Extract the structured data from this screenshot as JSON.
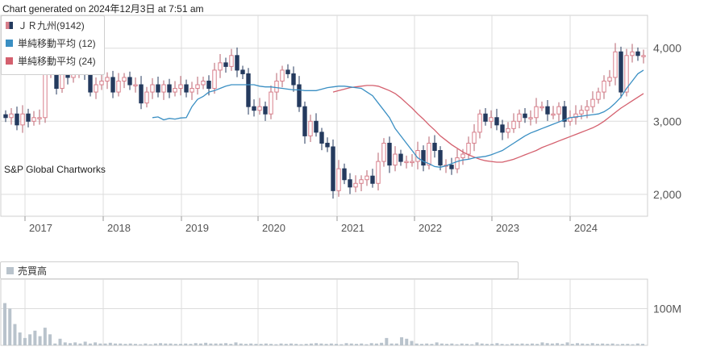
{
  "generated": "Chart generated on 2024年12月3日 at 7:51 am",
  "legend": {
    "price": "ＪＲ九州(9142)",
    "ma12": "単純移動平均 (12)",
    "ma24": "単純移動平均 (24)"
  },
  "source": "S&P Global Chartworks",
  "volume_label": "売買高",
  "colors": {
    "up": "#d97f8b",
    "down": "#243a5e",
    "ma12": "#3a8fc3",
    "ma24": "#d4606e",
    "volume": "#b9c3cc",
    "grid": "#dcdcdc"
  },
  "chart_data": [
    {
      "type": "candlestick",
      "series_name": "ＪＲ九州(9142)",
      "x_ticks": [
        "2017",
        "2018",
        "2019",
        "2020",
        "2021",
        "2022",
        "2023",
        "2024"
      ],
      "y_ticks": [
        "2,000",
        "3,000",
        "4,000"
      ],
      "ylim": [
        1700,
        4450
      ],
      "close": [
        3050,
        3100,
        2950,
        3100,
        3000,
        3050,
        3050,
        3700,
        3700,
        3450,
        3900,
        3600,
        3700,
        3800,
        3650,
        3400,
        3500,
        3550,
        3600,
        3400,
        3550,
        3600,
        3500,
        3500,
        3250,
        3400,
        3500,
        3400,
        3500,
        3400,
        3450,
        3500,
        3400,
        3450,
        3500,
        3550,
        3450,
        3700,
        3800,
        3750,
        3900,
        3700,
        3650,
        3200,
        3150,
        3200,
        3100,
        3400,
        3550,
        3700,
        3650,
        3500,
        3200,
        2800,
        3000,
        2850,
        2700,
        2650,
        2050,
        2350,
        2200,
        2100,
        2150,
        2200,
        2250,
        2150,
        2450,
        2700,
        2400,
        2550,
        2450,
        2450,
        2450,
        2600,
        2400,
        2700,
        2600,
        2400,
        2400,
        2350,
        2500,
        2550,
        2700,
        2850,
        3100,
        3000,
        3050,
        2950,
        2850,
        2900,
        3000,
        3100,
        3050,
        3050,
        3200,
        3200,
        3100,
        3100,
        3200,
        3000,
        3050,
        3100,
        3150,
        3200,
        3300,
        3400,
        3550,
        3600,
        3950,
        3400,
        3900,
        3950,
        3900,
        3900
      ],
      "moving_average_12": [
        3050,
        3060,
        3020,
        3040,
        3030,
        3045,
        3050,
        3200,
        3300,
        3340,
        3400,
        3420,
        3450,
        3480,
        3500,
        3500,
        3500,
        3500,
        3500,
        3480,
        3470,
        3470,
        3460,
        3450,
        3440,
        3430,
        3430,
        3420,
        3420,
        3420,
        3440,
        3460,
        3470,
        3480,
        3480,
        3470,
        3460,
        3450,
        3400,
        3350,
        3250,
        3150,
        3050,
        2900,
        2800,
        2700,
        2600,
        2500,
        2450,
        2420,
        2380,
        2370,
        2390,
        2420,
        2450,
        2470,
        2480,
        2500,
        2510,
        2520,
        2540,
        2570,
        2600,
        2650,
        2700,
        2750,
        2800,
        2840,
        2870,
        2900,
        2930,
        2960,
        2990,
        3020,
        3050,
        3060,
        3070,
        3080,
        3090,
        3100,
        3130,
        3180,
        3250,
        3330,
        3450,
        3550,
        3650,
        3700
      ],
      "moving_average_24": [
        3400,
        3420,
        3440,
        3460,
        3470,
        3480,
        3490,
        3490,
        3480,
        3450,
        3420,
        3380,
        3320,
        3250,
        3180,
        3100,
        3030,
        2950,
        2880,
        2800,
        2740,
        2680,
        2630,
        2580,
        2540,
        2510,
        2480,
        2460,
        2450,
        2440,
        2440,
        2460,
        2480,
        2510,
        2540,
        2570,
        2600,
        2640,
        2670,
        2700,
        2730,
        2760,
        2790,
        2820,
        2850,
        2880,
        2910,
        2950,
        3000,
        3060,
        3120,
        3180,
        3230,
        3280,
        3330,
        3380
      ]
    },
    {
      "type": "bar",
      "series_name": "売買高",
      "y_ticks": [
        "100M"
      ],
      "ylim": [
        0,
        180
      ],
      "values": [
        115,
        100,
        58,
        35,
        20,
        30,
        40,
        25,
        48,
        30,
        5,
        18,
        8,
        6,
        8,
        5,
        10,
        5,
        8,
        5,
        5,
        7,
        5,
        5,
        4,
        5,
        4,
        3,
        5,
        3,
        5,
        6,
        5,
        5,
        4,
        4,
        5,
        4,
        6,
        5,
        7,
        5,
        5,
        5,
        6,
        4,
        8,
        5,
        4,
        5,
        4,
        4,
        5,
        4,
        3,
        5,
        4,
        5,
        4,
        3,
        4,
        5,
        6,
        5,
        4,
        5,
        4,
        3,
        6,
        5,
        4,
        5,
        3,
        6,
        5,
        7,
        20,
        5,
        5,
        22,
        18,
        12,
        5,
        4,
        5,
        4,
        8,
        5,
        4,
        5,
        3,
        5,
        4,
        3,
        8,
        5,
        4,
        4,
        6,
        4,
        3,
        5,
        4,
        5,
        4,
        5,
        4,
        8,
        6,
        5,
        6,
        4,
        8,
        4,
        6,
        5,
        4,
        6,
        4,
        5,
        4,
        5,
        3,
        4,
        4,
        3,
        5,
        4
      ]
    }
  ]
}
